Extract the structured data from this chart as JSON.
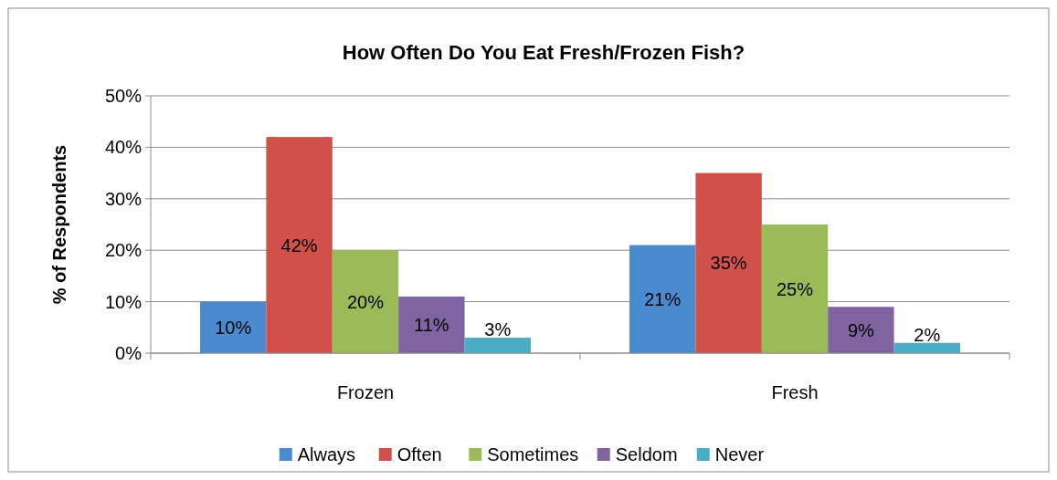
{
  "chart_data": {
    "type": "bar",
    "title": "How Often Do You Eat Fresh/Frozen Fish?",
    "ylabel": "% of Respondents",
    "categories": [
      "Frozen",
      "Fresh"
    ],
    "series": [
      {
        "name": "Always",
        "color": "#4a8bd0",
        "values": [
          10,
          21
        ],
        "value_labels": [
          "10%",
          "21%"
        ]
      },
      {
        "name": "Often",
        "color": "#d2504a",
        "values": [
          42,
          35
        ],
        "value_labels": [
          "42%",
          "35%"
        ]
      },
      {
        "name": "Sometimes",
        "color": "#9bbb59",
        "values": [
          20,
          25
        ],
        "value_labels": [
          "20%",
          "25%"
        ]
      },
      {
        "name": "Seldom",
        "color": "#8064a2",
        "values": [
          11,
          9
        ],
        "value_labels": [
          "11%",
          "9%"
        ]
      },
      {
        "name": "Never",
        "color": "#4bacc6",
        "values": [
          3,
          2
        ],
        "value_labels": [
          "3%",
          "2%"
        ]
      }
    ],
    "ylim": [
      0,
      50
    ],
    "yticks": [
      {
        "value": 0,
        "label": "0%"
      },
      {
        "value": 10,
        "label": "10%"
      },
      {
        "value": 20,
        "label": "20%"
      },
      {
        "value": 30,
        "label": "30%"
      },
      {
        "value": 40,
        "label": "40%"
      },
      {
        "value": 50,
        "label": "50%"
      }
    ],
    "grid": "y",
    "legend": "bottom"
  }
}
